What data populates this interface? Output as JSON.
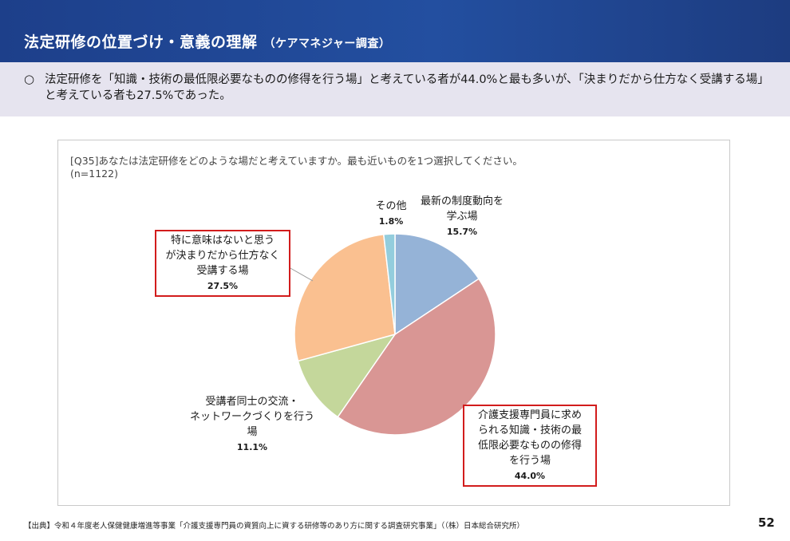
{
  "header": {
    "title": "法定研修の位置づけ・意義の理解",
    "subtitle": "（ケアマネジャー調査）"
  },
  "summary": {
    "bullet": "○",
    "text": "法定研修を「知識・技術の最低限必要なものの修得を行う場」と考えている者が44.0%と最も多いが、「決まりだから仕方なく受講する場」と考えている者も27.5%であった。"
  },
  "chart_data": {
    "type": "pie",
    "question": "[Q35]あなたは法定研修をどのような場だと考えていますか。最も近いものを1つ選択してください。",
    "n_label": "(n=1122)",
    "start": "12 o'clock",
    "direction": "clockwise",
    "slices": [
      {
        "label": "最新の制度動向を学ぶ場",
        "label_lines": [
          "最新の制度動向を",
          "学ぶ場"
        ],
        "value": 15.7,
        "value_label": "15.7%",
        "color": "#95b3d7",
        "highlighted": false
      },
      {
        "label": "介護支援専門員に求められる知識・技術の最低限必要なものの修得を行う場",
        "label_lines": [
          "介護支援専門員に求め",
          "られる知識・技術の最",
          "低限必要なものの修得",
          "を行う場"
        ],
        "value": 44.0,
        "value_label": "44.0%",
        "color": "#d99694",
        "highlighted": true
      },
      {
        "label": "受講者同士の交流・ネットワークづくりを行う場",
        "label_lines": [
          "受講者同士の交流・",
          "ネットワークづくりを行う",
          "場"
        ],
        "value": 11.1,
        "value_label": "11.1%",
        "color": "#c4d79b",
        "highlighted": false
      },
      {
        "label": "特に意味はないと思うが決まりだから仕方なく受講する場",
        "label_lines": [
          "特に意味はないと思う",
          "が決まりだから仕方なく",
          "受講する場"
        ],
        "value": 27.5,
        "value_label": "27.5%",
        "color": "#fac090",
        "highlighted": true
      },
      {
        "label": "その他",
        "label_lines": [
          "その他"
        ],
        "value": 1.8,
        "value_label": "1.8%",
        "color": "#93cddd",
        "highlighted": false
      }
    ]
  },
  "footer": {
    "source": "【出典】令和４年度老人保健健康増進等事業「介護支援専門員の資質向上に資する研修等のあり方に関する調査研究事業」（（株）日本総合研究所）",
    "page_number": "52"
  }
}
